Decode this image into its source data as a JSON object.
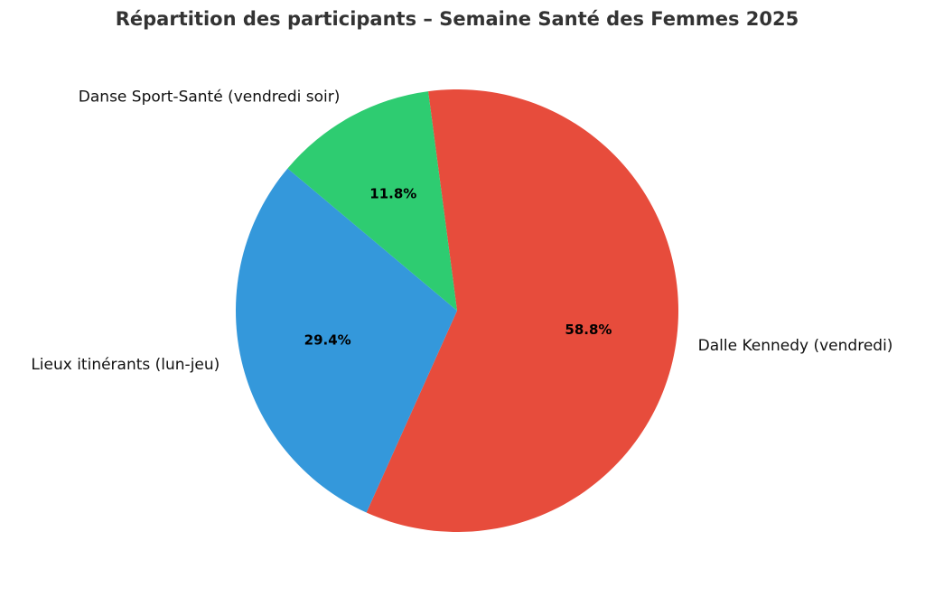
{
  "chart_data": {
    "type": "pie",
    "title": "Répartition des participants – Semaine Santé des Femmes 2025",
    "categories": [
      "Dalle Kennedy (vendredi)",
      "Lieux itinérants (lun-jeu)",
      "Danse Sport-Santé (vendredi soir)"
    ],
    "values": [
      58.8,
      29.4,
      11.8
    ],
    "value_labels": [
      "58.8%",
      "29.4%",
      "11.8%"
    ],
    "colors": [
      "#e74c3c",
      "#3498db",
      "#2ecc71"
    ]
  }
}
